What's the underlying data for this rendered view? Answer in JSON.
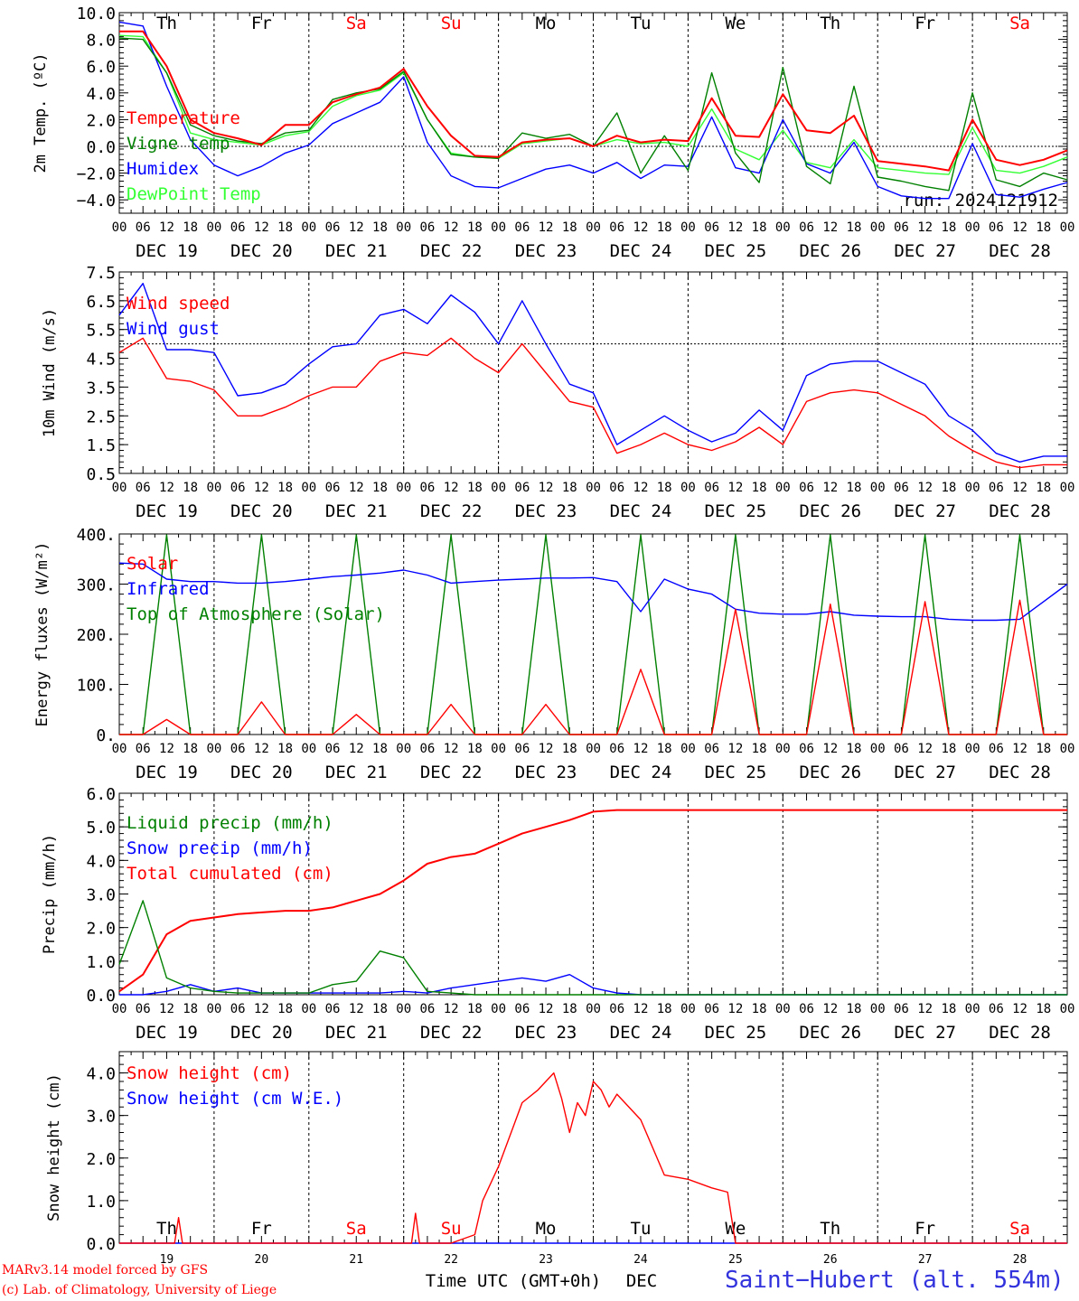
{
  "chart_data": [
    {
      "type": "line",
      "ylabel": "2m Temp. (ºC)",
      "ylim": [
        -5,
        10
      ],
      "ytick_labels": [
        "−4.0",
        "−2.0",
        "0.0",
        "2.0",
        "4.0",
        "6.0",
        "8.0",
        "10.0"
      ],
      "ytick_values": [
        -4,
        -2,
        0,
        2,
        4,
        6,
        8,
        10
      ],
      "reference_line": 0,
      "annotation": "run: 2024121912",
      "day_labels": [
        "Th",
        "Fr",
        "Sa",
        "Su",
        "Mo",
        "Tu",
        "We",
        "Th",
        "Fr",
        "Sa"
      ],
      "hour_labels": [
        "00",
        "06",
        "12",
        "18"
      ],
      "date_labels": [
        "DEC 19",
        "DEC 20",
        "DEC 21",
        "DEC 22",
        "DEC 23",
        "DEC 24",
        "DEC 25",
        "DEC 26",
        "DEC 27",
        "DEC 28"
      ],
      "x_hours": [
        0,
        6,
        12,
        18,
        24,
        30,
        36,
        42,
        48,
        54,
        60,
        66,
        72,
        78,
        84,
        90,
        96,
        102,
        108,
        114,
        120,
        126,
        132,
        138,
        144,
        150,
        156,
        162,
        168,
        174,
        180,
        186,
        192,
        198,
        204,
        210,
        216,
        222,
        228,
        234,
        240
      ],
      "series": [
        {
          "name": "Temperature",
          "color": "#ff0000",
          "values": [
            8.6,
            8.6,
            6.0,
            2.0,
            1.0,
            0.6,
            0.1,
            1.6,
            1.6,
            3.3,
            3.9,
            4.4,
            5.8,
            3.0,
            0.8,
            -0.7,
            -0.8,
            0.3,
            0.5,
            0.6,
            0.0,
            0.8,
            0.3,
            0.5,
            0.4,
            3.6,
            0.8,
            0.7,
            3.9,
            1.2,
            1.0,
            2.3,
            -1.1,
            -1.3,
            -1.5,
            -1.8,
            2.0,
            -1.0,
            -1.4,
            -1.0,
            -0.3
          ]
        },
        {
          "name": "Vigne temp",
          "color": "#008000",
          "values": [
            8.1,
            8.0,
            5.5,
            1.6,
            0.8,
            0.4,
            0.2,
            1.0,
            1.2,
            3.5,
            4.0,
            4.3,
            5.6,
            2.0,
            -0.6,
            -0.8,
            -0.9,
            1.0,
            0.6,
            0.9,
            0.0,
            2.5,
            -2.0,
            0.8,
            -1.8,
            5.5,
            -0.5,
            -2.7,
            5.9,
            -1.5,
            -2.8,
            4.5,
            -2.3,
            -2.6,
            -3.0,
            -3.3,
            4.0,
            -2.5,
            -3.0,
            -2.0,
            -2.5
          ]
        },
        {
          "name": "Humidex",
          "color": "#0000ff",
          "values": [
            9.3,
            9.0,
            4.5,
            0.5,
            -1.4,
            -2.2,
            -1.5,
            -0.5,
            0.1,
            1.7,
            2.5,
            3.3,
            5.2,
            0.3,
            -2.2,
            -3.0,
            -3.1,
            -2.4,
            -1.7,
            -1.4,
            -2.0,
            -1.2,
            -2.4,
            -1.4,
            -1.5,
            2.2,
            -1.6,
            -2.0,
            2.0,
            -1.3,
            -2.0,
            0.3,
            -3.0,
            -3.7,
            -3.9,
            -3.9,
            0.2,
            -3.6,
            -3.8,
            -3.2,
            -2.7
          ]
        },
        {
          "name": "DewPoint Temp",
          "color": "#33ff33",
          "values": [
            8.3,
            8.2,
            5.5,
            1.0,
            0.5,
            0.3,
            0.1,
            0.8,
            1.1,
            3.0,
            3.8,
            4.2,
            5.5,
            2.0,
            -0.5,
            -0.8,
            -0.9,
            0.2,
            0.4,
            0.6,
            0.0,
            0.5,
            0.2,
            0.3,
            0.0,
            2.8,
            -0.2,
            -1.0,
            1.2,
            -1.2,
            -1.6,
            0.5,
            -1.6,
            -1.8,
            -2.0,
            -2.1,
            1.4,
            -1.8,
            -2.0,
            -1.5,
            -0.8
          ]
        }
      ]
    },
    {
      "type": "line",
      "ylabel": "10m Wind (m/s)",
      "ylim": [
        0.5,
        7.5
      ],
      "ytick_labels": [
        "0.5",
        "1.5",
        "2.5",
        "3.5",
        "4.5",
        "5.5",
        "6.5",
        "7.5"
      ],
      "ytick_values": [
        0.5,
        1.5,
        2.5,
        3.5,
        4.5,
        5.5,
        6.5,
        7.5
      ],
      "reference_line": 5.0,
      "hour_labels": [
        "00",
        "06",
        "12",
        "18"
      ],
      "date_labels": [
        "DEC 19",
        "DEC 20",
        "DEC 21",
        "DEC 22",
        "DEC 23",
        "DEC 24",
        "DEC 25",
        "DEC 26",
        "DEC 27",
        "DEC 28"
      ],
      "x_hours": [
        0,
        6,
        12,
        18,
        24,
        30,
        36,
        42,
        48,
        54,
        60,
        66,
        72,
        78,
        84,
        90,
        96,
        102,
        108,
        114,
        120,
        126,
        132,
        138,
        144,
        150,
        156,
        162,
        168,
        174,
        180,
        186,
        192,
        198,
        204,
        210,
        216,
        222,
        228,
        234,
        240
      ],
      "series": [
        {
          "name": "Wind speed",
          "color": "#ff0000",
          "values": [
            4.7,
            5.2,
            3.8,
            3.7,
            3.4,
            2.5,
            2.5,
            2.8,
            3.2,
            3.5,
            3.5,
            4.4,
            4.7,
            4.6,
            5.2,
            4.5,
            4.0,
            5.0,
            4.0,
            3.0,
            2.8,
            1.2,
            1.5,
            1.9,
            1.5,
            1.3,
            1.6,
            2.1,
            1.5,
            3.0,
            3.3,
            3.4,
            3.3,
            2.9,
            2.5,
            1.8,
            1.3,
            0.9,
            0.7,
            0.8,
            0.8
          ]
        },
        {
          "name": "Wind gust",
          "color": "#0000ff",
          "values": [
            6.0,
            7.1,
            4.8,
            4.8,
            4.7,
            3.2,
            3.3,
            3.6,
            4.3,
            4.9,
            5.0,
            6.0,
            6.2,
            5.7,
            6.7,
            6.1,
            5.0,
            6.5,
            5.0,
            3.6,
            3.3,
            1.5,
            2.0,
            2.5,
            2.0,
            1.6,
            1.9,
            2.7,
            2.0,
            3.9,
            4.3,
            4.4,
            4.4,
            4.0,
            3.6,
            2.5,
            2.0,
            1.2,
            0.9,
            1.1,
            1.1
          ]
        }
      ]
    },
    {
      "type": "line",
      "ylabel": "Energy fluxes (W/m²)",
      "ylim": [
        0,
        400
      ],
      "ytick_labels": [
        "0.",
        "100.",
        "200.",
        "300.",
        "400."
      ],
      "ytick_values": [
        0,
        100,
        200,
        300,
        400
      ],
      "hour_labels": [
        "00",
        "06",
        "12",
        "18"
      ],
      "date_labels": [
        "DEC 19",
        "DEC 20",
        "DEC 21",
        "DEC 22",
        "DEC 23",
        "DEC 24",
        "DEC 25",
        "DEC 26",
        "DEC 27",
        "DEC 28"
      ],
      "x_hours": [
        0,
        6,
        12,
        18,
        24,
        30,
        36,
        42,
        48,
        54,
        60,
        66,
        72,
        78,
        84,
        90,
        96,
        102,
        108,
        114,
        120,
        126,
        132,
        138,
        144,
        150,
        156,
        162,
        168,
        174,
        180,
        186,
        192,
        198,
        204,
        210,
        216,
        222,
        228,
        234,
        240
      ],
      "series": [
        {
          "name": "Solar",
          "color": "#ff0000",
          "values": [
            0,
            0,
            30,
            0,
            0,
            0,
            65,
            0,
            0,
            0,
            40,
            0,
            0,
            0,
            60,
            0,
            0,
            0,
            60,
            0,
            0,
            0,
            130,
            0,
            0,
            0,
            250,
            0,
            0,
            0,
            260,
            0,
            0,
            0,
            265,
            0,
            0,
            0,
            268,
            0,
            0
          ]
        },
        {
          "name": "Infrared",
          "color": "#0000ff",
          "values": [
            342,
            340,
            310,
            305,
            305,
            302,
            302,
            305,
            310,
            315,
            318,
            322,
            328,
            318,
            302,
            305,
            308,
            310,
            312,
            312,
            313,
            305,
            245,
            310,
            290,
            280,
            250,
            242,
            240,
            240,
            245,
            238,
            236,
            235,
            235,
            230,
            228,
            228,
            230,
            265,
            300
          ]
        },
        {
          "name": "Top of Atmosphere (Solar)",
          "color": "#008000",
          "values": [
            0,
            0,
            398,
            0,
            0,
            0,
            398,
            0,
            0,
            0,
            398,
            0,
            0,
            0,
            398,
            0,
            0,
            0,
            398,
            0,
            0,
            0,
            398,
            0,
            0,
            0,
            398,
            0,
            0,
            0,
            398,
            0,
            0,
            0,
            398,
            0,
            0,
            0,
            398,
            0,
            0
          ]
        }
      ]
    },
    {
      "type": "line",
      "ylabel": "Precip (mm/h)",
      "ylim": [
        0,
        6
      ],
      "ytick_labels": [
        "0.0",
        "1.0",
        "2.0",
        "3.0",
        "4.0",
        "5.0",
        "6.0"
      ],
      "ytick_values": [
        0,
        1,
        2,
        3,
        4,
        5,
        6
      ],
      "hour_labels": [
        "00",
        "06",
        "12",
        "18"
      ],
      "date_labels": [
        "DEC 19",
        "DEC 20",
        "DEC 21",
        "DEC 22",
        "DEC 23",
        "DEC 24",
        "DEC 25",
        "DEC 26",
        "DEC 27",
        "DEC 28"
      ],
      "x_hours": [
        0,
        6,
        12,
        18,
        24,
        30,
        36,
        42,
        48,
        54,
        60,
        66,
        72,
        78,
        84,
        90,
        96,
        102,
        108,
        114,
        120,
        126,
        132,
        138,
        144,
        150,
        156,
        162,
        168,
        174,
        180,
        186,
        192,
        198,
        204,
        210,
        216,
        222,
        228,
        234,
        240
      ],
      "series": [
        {
          "name": "Liquid precip (mm/h)",
          "color": "#008000",
          "values": [
            0.9,
            2.8,
            0.5,
            0.2,
            0.1,
            0.05,
            0.05,
            0.05,
            0.05,
            0.3,
            0.4,
            1.3,
            1.1,
            0.1,
            0.05,
            0,
            0,
            0,
            0,
            0,
            0,
            0,
            0,
            0,
            0,
            0,
            0,
            0,
            0,
            0,
            0,
            0,
            0,
            0,
            0,
            0,
            0,
            0,
            0,
            0,
            0
          ]
        },
        {
          "name": "Snow precip (mm/h)",
          "color": "#0000ff",
          "values": [
            0,
            0,
            0.1,
            0.3,
            0.1,
            0.2,
            0.05,
            0.05,
            0.05,
            0.05,
            0.05,
            0.05,
            0.1,
            0.05,
            0.2,
            0.3,
            0.4,
            0.5,
            0.4,
            0.6,
            0.2,
            0.05,
            0,
            0,
            0,
            0,
            0,
            0,
            0,
            0,
            0,
            0,
            0,
            0,
            0,
            0,
            0,
            0,
            0,
            0,
            0
          ]
        },
        {
          "name": "Total cumulated (cm)",
          "color": "#ff0000",
          "values": [
            0.1,
            0.6,
            1.8,
            2.2,
            2.3,
            2.4,
            2.45,
            2.5,
            2.5,
            2.6,
            2.8,
            3.0,
            3.4,
            3.9,
            4.1,
            4.2,
            4.5,
            4.8,
            5.0,
            5.2,
            5.45,
            5.5,
            5.5,
            5.5,
            5.5,
            5.5,
            5.5,
            5.5,
            5.5,
            5.5,
            5.5,
            5.5,
            5.5,
            5.5,
            5.5,
            5.5,
            5.5,
            5.5,
            5.5,
            5.5,
            5.5
          ]
        }
      ]
    },
    {
      "type": "line",
      "ylabel": "Snow height (cm)",
      "ylim": [
        0,
        4.5
      ],
      "ytick_labels": [
        "0.0",
        "1.0",
        "2.0",
        "3.0",
        "4.0"
      ],
      "ytick_values": [
        0,
        1,
        2,
        3,
        4
      ],
      "xlabel": "Time UTC (GMT+0h)",
      "x_unit_label": "DEC",
      "day_labels": [
        "Th",
        "Fr",
        "Sa",
        "Su",
        "Mo",
        "Tu",
        "We",
        "Th",
        "Fr",
        "Sa"
      ],
      "day_numbers": [
        "19",
        "20",
        "21",
        "22",
        "23",
        "24",
        "25",
        "26",
        "27",
        "28"
      ],
      "x_hours": [
        0,
        6,
        12,
        14,
        15,
        16,
        18,
        24,
        30,
        36,
        42,
        48,
        54,
        60,
        66,
        74,
        75,
        76,
        84,
        90,
        92,
        96,
        100,
        102,
        106,
        108,
        110,
        112,
        114,
        116,
        118,
        120,
        122,
        124,
        126,
        132,
        138,
        144,
        150,
        154,
        156,
        240
      ],
      "series": [
        {
          "name": "Snow height (cm)",
          "color": "#ff0000",
          "values": [
            0,
            0,
            0,
            0,
            0.6,
            0,
            0,
            0,
            0,
            0,
            0,
            0,
            0,
            0,
            0,
            0,
            0.7,
            0,
            0,
            0.2,
            1.0,
            1.8,
            2.8,
            3.3,
            3.6,
            3.8,
            4.0,
            3.4,
            2.6,
            3.3,
            3.0,
            3.8,
            3.6,
            3.2,
            3.5,
            2.9,
            1.6,
            1.5,
            1.3,
            1.2,
            0,
            0
          ]
        },
        {
          "name": "Snow height (cm W.E.)",
          "color": "#0000ff",
          "values": [
            0,
            0,
            0,
            0,
            0,
            0,
            0,
            0,
            0,
            0,
            0,
            0,
            0,
            0,
            0,
            0,
            0,
            0,
            0,
            0,
            0,
            0,
            0,
            0,
            0,
            0,
            0,
            0,
            0,
            0,
            0,
            0,
            0,
            0,
            0,
            0,
            0,
            0,
            0,
            0,
            0,
            0
          ]
        }
      ]
    }
  ],
  "footer": {
    "model_line": "MARv3.14 model forced by GFS",
    "copyright_line": "(c) Lab. of Climatology, University of Liege",
    "station": "Saint−Hubert (alt. 554m)"
  },
  "colors": {
    "weekday": "#000000",
    "weekend": "#ff0000",
    "station": "#3333dd",
    "footer": "#ff0000"
  }
}
